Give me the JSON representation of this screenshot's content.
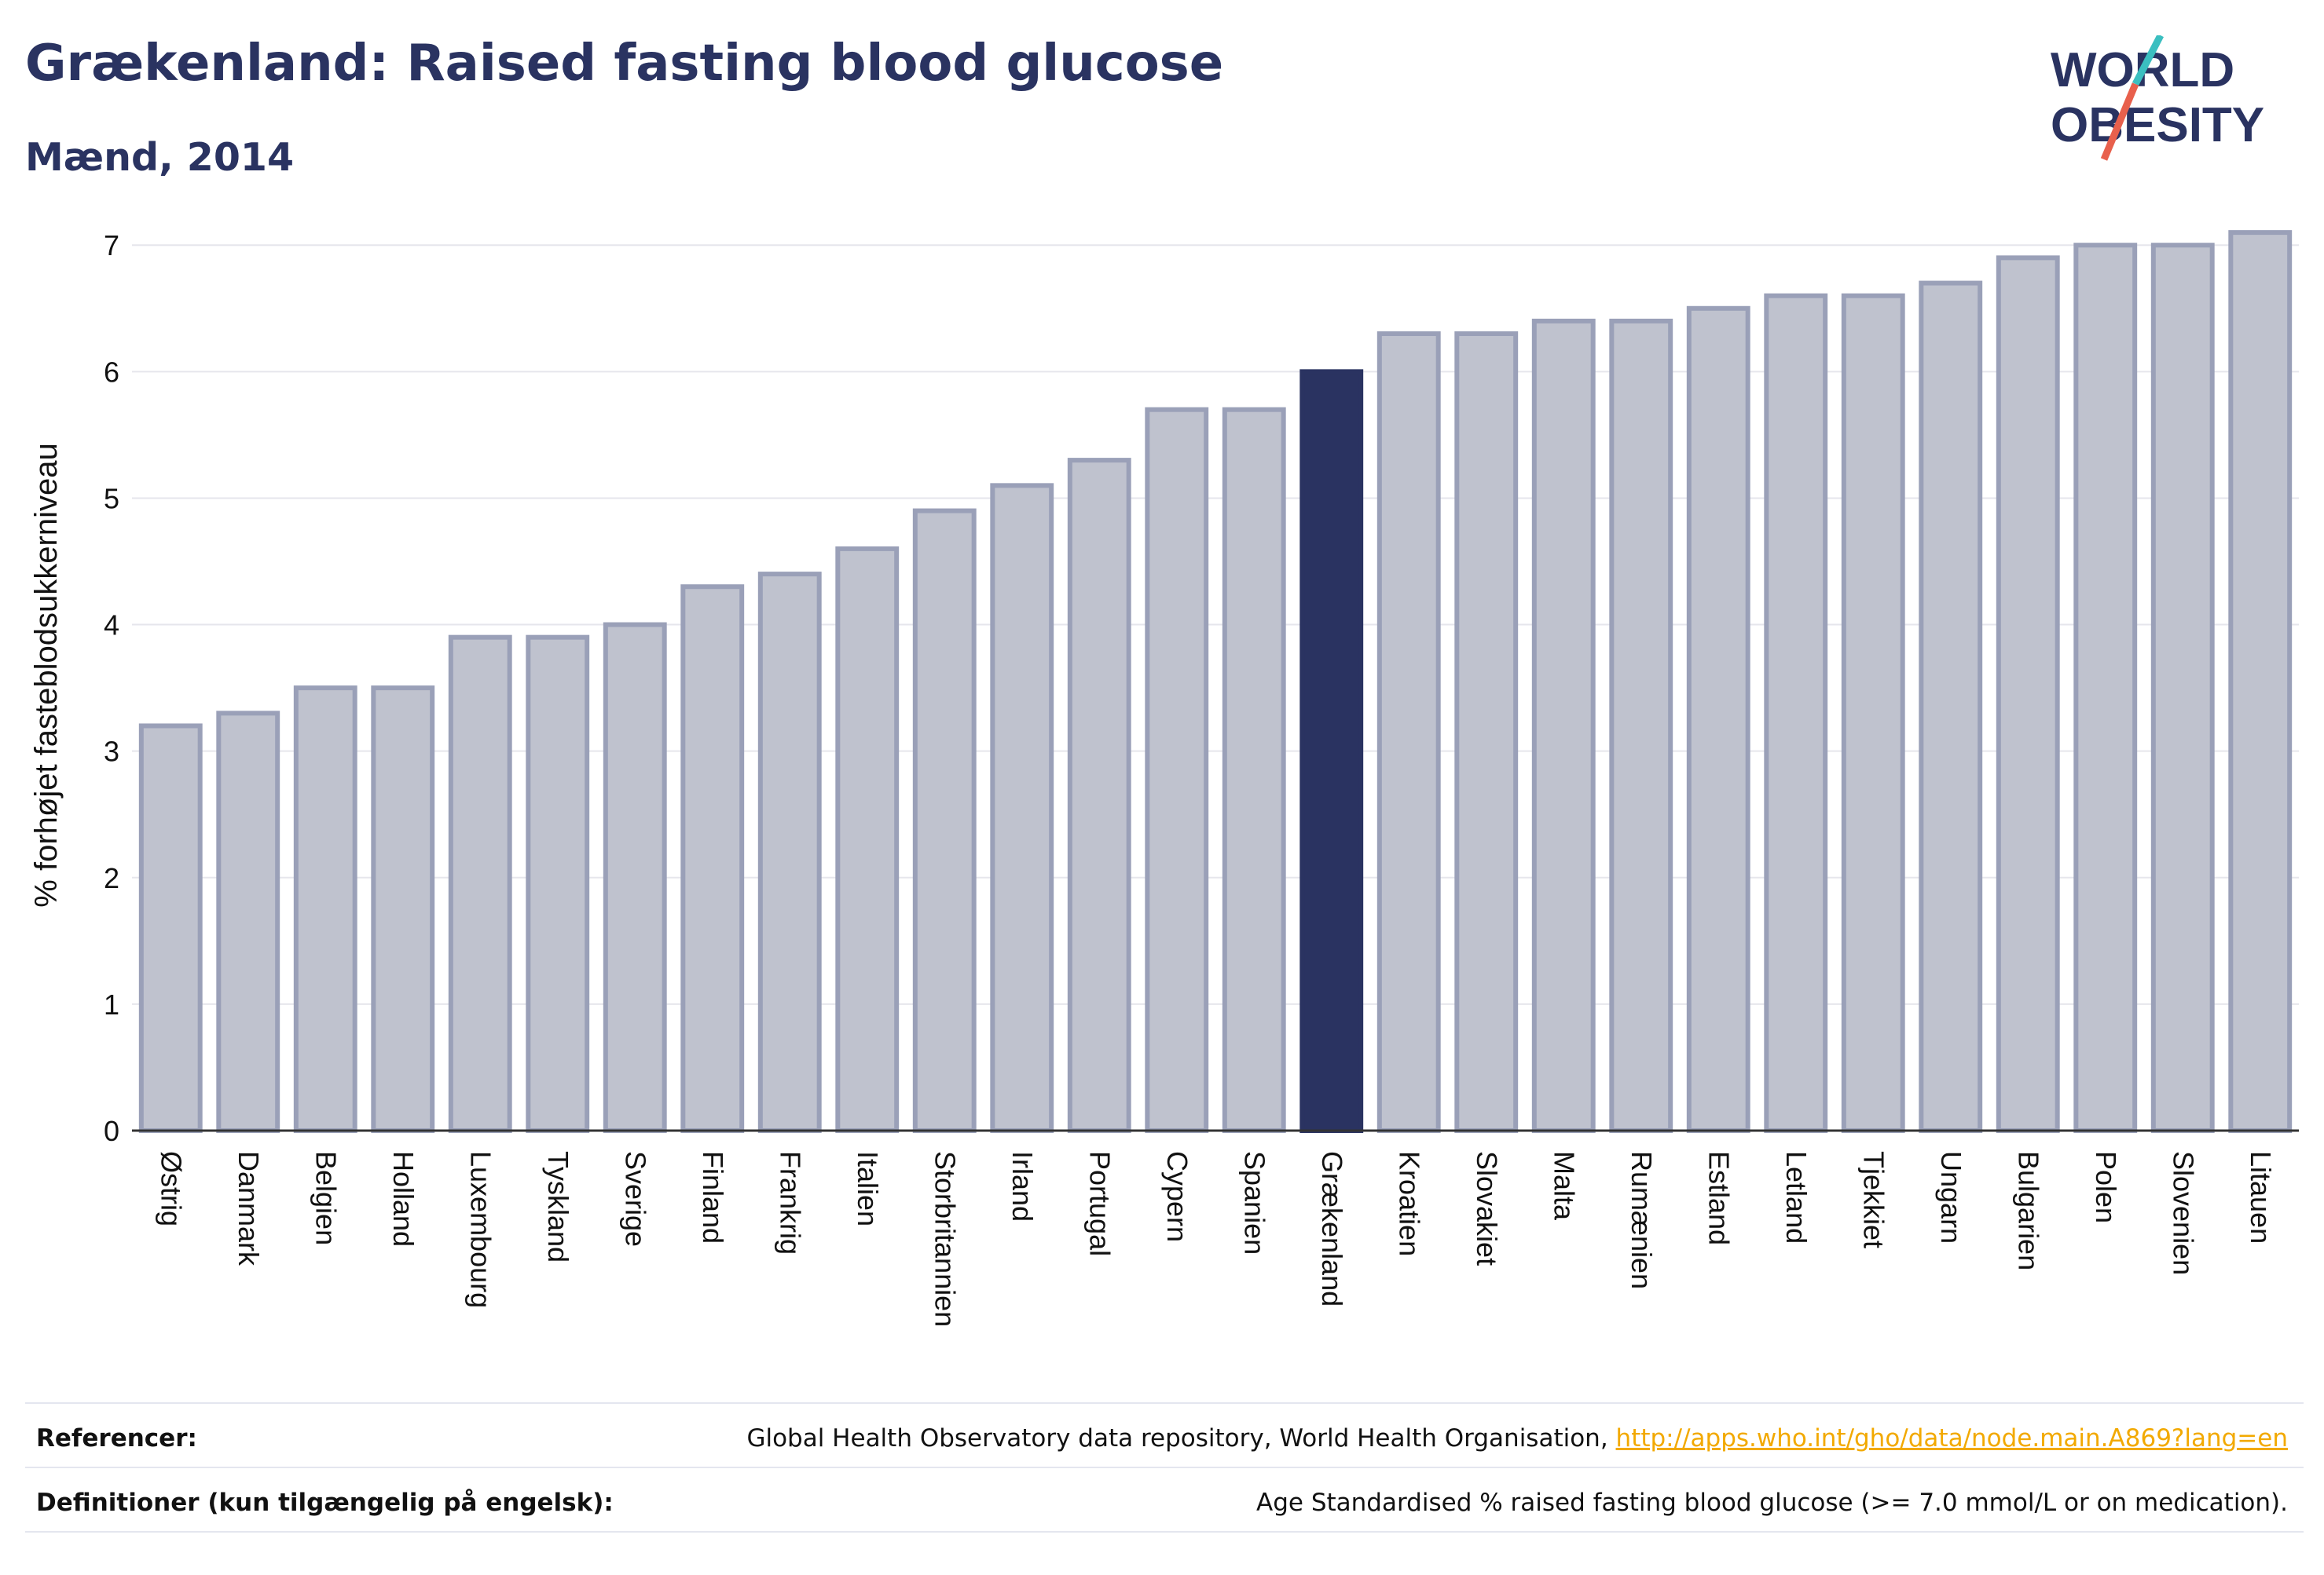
{
  "header": {
    "title": "Grækenland: Raised fasting blood glucose",
    "subtitle": "Mænd, 2014",
    "logo_line1": "WORLD",
    "logo_line2": "OBESITY"
  },
  "colors": {
    "highlight": "#2a3361",
    "bar_fill": "#bfc2ce",
    "bar_stroke": "#9aa0b8",
    "grid": "#e6e6ec",
    "link": "#f2a900",
    "logo_teal": "#3bbfc0",
    "logo_red": "#e8604c"
  },
  "chart_data": {
    "type": "bar",
    "categories": [
      "Østrig",
      "Danmark",
      "Belgien",
      "Holland",
      "Luxembourg",
      "Tyskland",
      "Sverige",
      "Finland",
      "Frankrig",
      "Italien",
      "Storbritannien",
      "Irland",
      "Portugal",
      "Cypern",
      "Spanien",
      "Grækenland",
      "Kroatien",
      "Slovakiet",
      "Malta",
      "Rumænien",
      "Estland",
      "Letland",
      "Tjekkiet",
      "Ungarn",
      "Bulgarien",
      "Polen",
      "Slovenien",
      "Litauen"
    ],
    "values": [
      3.2,
      3.3,
      3.5,
      3.5,
      3.9,
      3.9,
      4.0,
      4.3,
      4.4,
      4.6,
      4.9,
      5.1,
      5.3,
      5.7,
      5.7,
      6.0,
      6.3,
      6.3,
      6.4,
      6.4,
      6.5,
      6.6,
      6.6,
      6.7,
      6.9,
      7.0,
      7.0,
      7.1
    ],
    "highlight": "Grækenland",
    "title": "Grækenland: Raised fasting blood glucose",
    "subtitle": "Mænd, 2014",
    "xlabel": "",
    "ylabel": "% forhøjet fasteblodsukkerniveau",
    "ylim": [
      0,
      7.2
    ],
    "yticks": [
      0,
      1,
      2,
      3,
      4,
      5,
      6,
      7
    ],
    "grid": true,
    "legend": "none"
  },
  "footer": {
    "references_label": "Referencer:",
    "references_text": "Global Health Observatory data repository, World Health Organisation, ",
    "references_link": "http://apps.who.int/gho/data/node.main.A869?lang=en",
    "definitions_label": "Definitioner (kun tilgængelig på engelsk):",
    "definitions_text": "Age Standardised % raised fasting blood glucose (>= 7.0 mmol/L or on medication)."
  }
}
